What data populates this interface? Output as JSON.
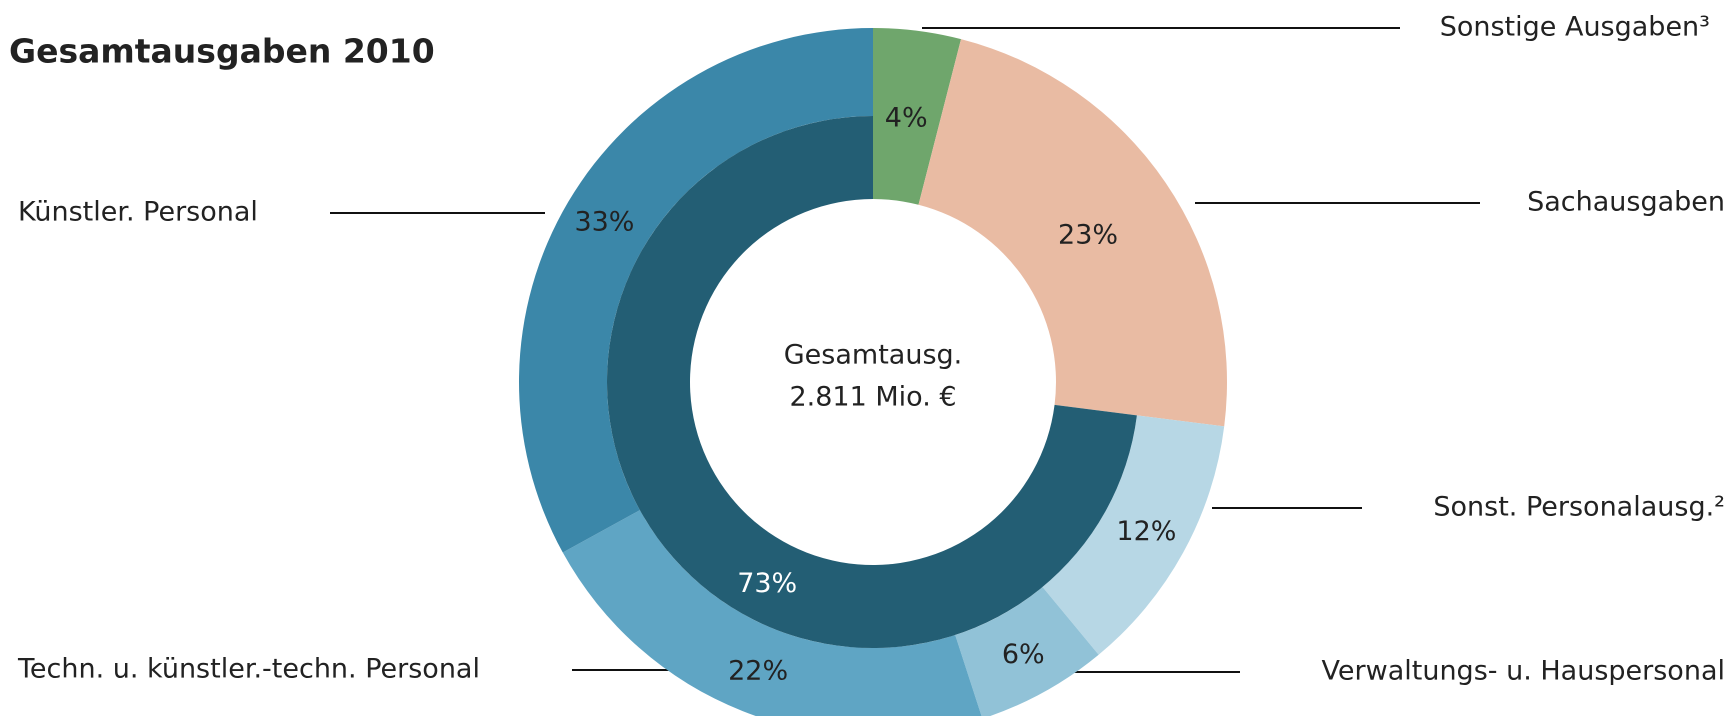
{
  "chart_data": {
    "type": "donut",
    "title": "Gesamtausgaben 2010",
    "center_label": [
      "Gesamtausg.",
      "2.811 Mio. €"
    ],
    "categories": [
      "Sonstige Ausgaben³",
      "Sachausgaben",
      "Sonst. Personalausg.²",
      "Verwaltungs- u. Hauspersonal",
      "Techn. u. künstler.-techn. Personal",
      "Künstler. Personal"
    ],
    "values": [
      4,
      23,
      12,
      6,
      22,
      33
    ],
    "value_labels": [
      "4%",
      "23%",
      "12%",
      "6%",
      "22%",
      "33%"
    ],
    "colors": [
      "#6fa66c",
      "#e9bba3",
      "#b7d7e5",
      "#91c2d7",
      "#5fa5c4",
      "#3b87a9"
    ],
    "inner": {
      "values": [
        73
      ],
      "value_labels": [
        "73%"
      ],
      "color": "#235e74"
    }
  }
}
